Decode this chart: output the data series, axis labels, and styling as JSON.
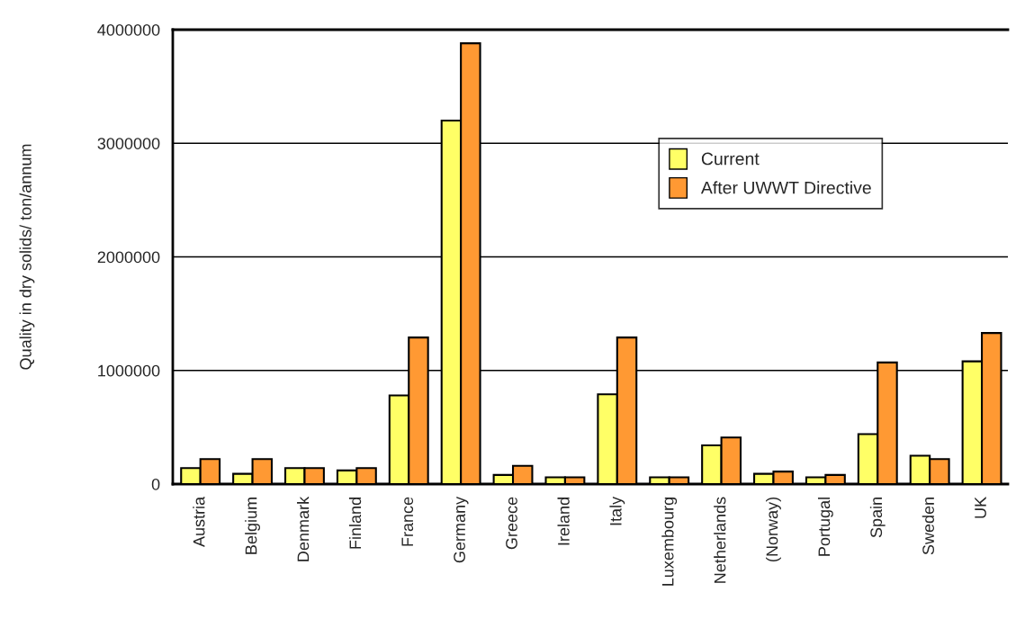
{
  "chart_data": {
    "type": "bar",
    "ylabel": "Quality in dry solids/ ton/annum",
    "categories": [
      "Austria",
      "Belgium",
      "Denmark",
      "Finland",
      "France",
      "Germany",
      "Greece",
      "Ireland",
      "Italy",
      "Luxembourg",
      "Netherlands",
      "(Norway)",
      "Portugal",
      "Spain",
      "Sweden",
      "UK"
    ],
    "series": [
      {
        "name": "Current",
        "color": "#ffff66",
        "values": [
          140000,
          90000,
          140000,
          120000,
          780000,
          3200000,
          80000,
          60000,
          790000,
          60000,
          340000,
          90000,
          60000,
          440000,
          250000,
          1080000
        ]
      },
      {
        "name": "After UWWT Directive",
        "color": "#ff9933",
        "values": [
          220000,
          220000,
          140000,
          140000,
          1290000,
          3880000,
          160000,
          60000,
          1290000,
          60000,
          410000,
          110000,
          80000,
          1070000,
          220000,
          1330000
        ]
      }
    ],
    "ylim": [
      0,
      4000000
    ],
    "yticks": [
      0,
      1000000,
      2000000,
      3000000,
      4000000
    ],
    "grid": "y",
    "legend": "upper right"
  }
}
